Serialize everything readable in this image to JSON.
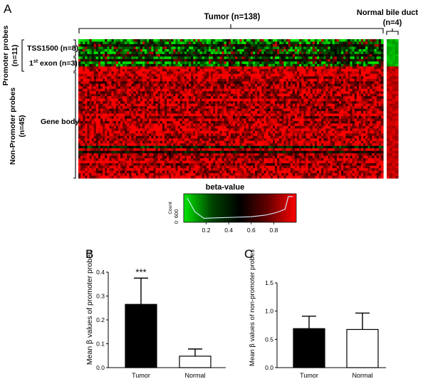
{
  "chart_data": [
    {
      "panel": "A",
      "type": "heatmap",
      "column_groups": [
        {
          "label": "Tumor (n=138)",
          "n": 138
        },
        {
          "label": "Normal bile duct",
          "sub": "(n=4)",
          "n": 4
        }
      ],
      "row_groups": [
        {
          "label": "Promoter probes",
          "sub": "(n=11)",
          "n": 11,
          "subgroups": [
            {
              "label": "TSS1500 (n=8)",
              "n": 8
            },
            {
              "label_prefix": "1",
              "label_sup": "st",
              "label_suffix": " exon (n=3)",
              "n": 3
            }
          ]
        },
        {
          "label": "Non-Promoter probes",
          "sub": "(n=45)",
          "n": 45,
          "subgroups": [
            {
              "label": "Gene body",
              "n": 45
            }
          ]
        }
      ],
      "colorscale": {
        "title": "beta-value",
        "min": 0,
        "max": 1,
        "stops": [
          "#00e600",
          "#004400",
          "#000000",
          "#660000",
          "#ff0000"
        ],
        "ticks": [
          "0.2",
          "0.4",
          "0.6",
          "0.8"
        ],
        "count_axis": {
          "label": "Count",
          "ticks": [
            "0",
            "600"
          ]
        }
      }
    },
    {
      "panel": "B",
      "type": "bar",
      "categories": [
        "Tumor",
        "Normal"
      ],
      "values": [
        0.265,
        0.048
      ],
      "errors": [
        0.11,
        0.03
      ],
      "bar_colors": [
        "#000000",
        "#ffffff"
      ],
      "ylabel_prefix": "Mean ",
      "ylabel_symbol": "β",
      "ylabel_suffix": " values of promoter probes",
      "ylim": [
        0,
        0.4
      ],
      "yticks": [
        "0.0",
        "0.1",
        "0.2",
        "0.3",
        "0.4"
      ],
      "annotation": "***"
    },
    {
      "panel": "C",
      "type": "bar",
      "categories": [
        "Tumor",
        "Normal"
      ],
      "values": [
        0.69,
        0.675
      ],
      "errors": [
        0.22,
        0.29
      ],
      "bar_colors": [
        "#000000",
        "#ffffff"
      ],
      "ylabel_prefix": "Mean ",
      "ylabel_symbol": "β",
      "ylabel_suffix": " values of non-promoter probes",
      "ylim": [
        0,
        1.5
      ],
      "yticks": [
        "0.0",
        "0.5",
        "1.0",
        "1.5"
      ],
      "annotation": ""
    }
  ]
}
